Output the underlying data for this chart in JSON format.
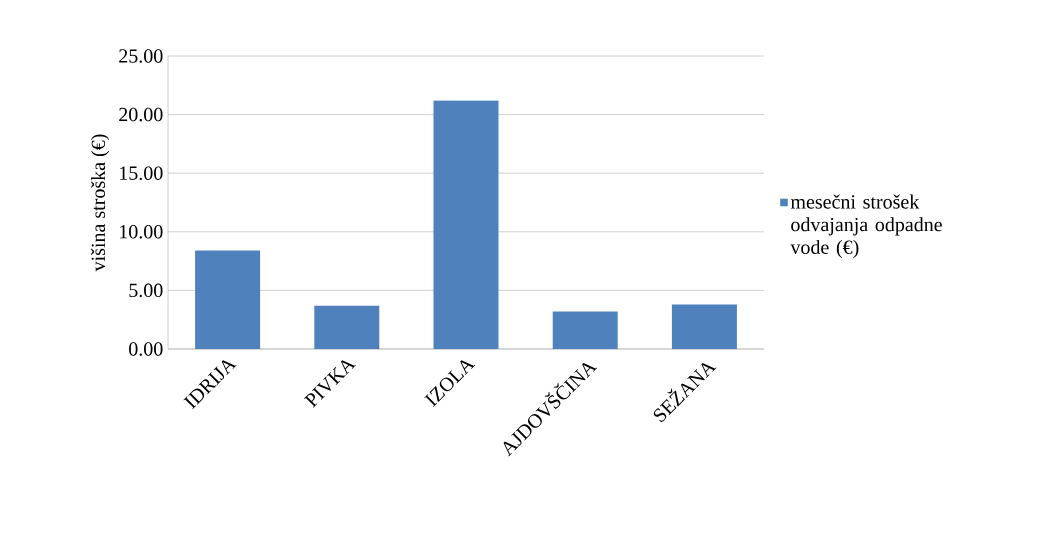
{
  "chart_data": {
    "type": "bar",
    "categories": [
      "IDRIJA",
      "PIVKA",
      "IZOLA",
      "AJDOVŠČINA",
      "SEŽANA"
    ],
    "series": [
      {
        "name": "mesečni strošek odvajanja odpadne vode (€)",
        "color": "#4f81bd",
        "values": [
          8.4,
          3.7,
          21.2,
          3.2,
          3.8
        ]
      }
    ],
    "ylabel": "višina stroška (€)",
    "ylim": [
      0,
      25
    ],
    "yticks": [
      {
        "value": 0,
        "label": "0.00"
      },
      {
        "value": 5,
        "label": "5.00"
      },
      {
        "value": 10,
        "label": "10.00"
      },
      {
        "value": 15,
        "label": "15.00"
      },
      {
        "value": 20,
        "label": "20.00"
      },
      {
        "value": 25,
        "label": "25.00"
      }
    ],
    "grid": "y",
    "legend": "right"
  }
}
